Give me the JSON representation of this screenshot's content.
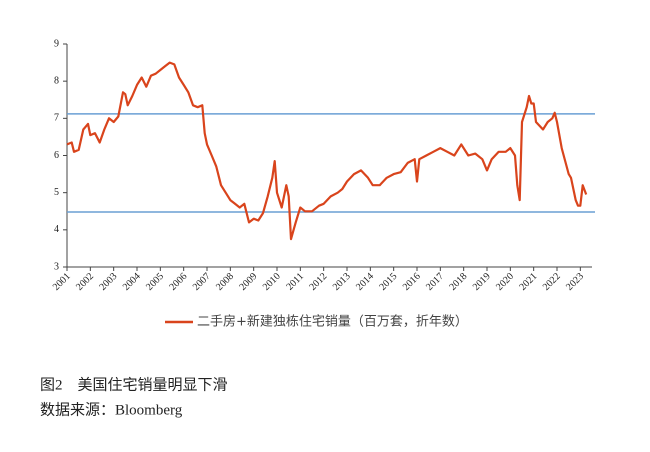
{
  "chart_data": {
    "type": "line",
    "x": [
      2001.0,
      2001.2,
      2001.3,
      2001.5,
      2001.7,
      2001.9,
      2002.0,
      2002.2,
      2002.4,
      2002.6,
      2002.8,
      2003.0,
      2003.2,
      2003.4,
      2003.5,
      2003.6,
      2003.8,
      2004.0,
      2004.2,
      2004.4,
      2004.6,
      2004.8,
      2005.0,
      2005.2,
      2005.4,
      2005.6,
      2005.8,
      2006.0,
      2006.2,
      2006.4,
      2006.6,
      2006.8,
      2006.9,
      2007.0,
      2007.2,
      2007.4,
      2007.6,
      2007.8,
      2008.0,
      2008.2,
      2008.4,
      2008.6,
      2008.8,
      2009.0,
      2009.2,
      2009.4,
      2009.6,
      2009.8,
      2009.9,
      2010.0,
      2010.2,
      2010.4,
      2010.5,
      2010.6,
      2010.8,
      2011.0,
      2011.2,
      2011.5,
      2011.8,
      2012.0,
      2012.3,
      2012.6,
      2012.8,
      2013.0,
      2013.3,
      2013.6,
      2013.9,
      2014.1,
      2014.4,
      2014.7,
      2015.0,
      2015.3,
      2015.6,
      2015.9,
      2016.0,
      2016.1,
      2016.4,
      2016.7,
      2017.0,
      2017.3,
      2017.6,
      2017.9,
      2018.2,
      2018.5,
      2018.8,
      2019.0,
      2019.2,
      2019.5,
      2019.8,
      2020.0,
      2020.2,
      2020.3,
      2020.4,
      2020.5,
      2020.7,
      2020.8,
      2020.9,
      2021.0,
      2021.1,
      2021.4,
      2021.6,
      2021.8,
      2021.9,
      2022.0,
      2022.2,
      2022.5,
      2022.6,
      2022.8,
      2022.9,
      2023.0,
      2023.1,
      2023.25
    ],
    "series": [
      {
        "name": "二手房+新建独栋住宅销量（百万套，折年数）",
        "color": "#d9441c",
        "values": [
          6.3,
          6.35,
          6.1,
          6.15,
          6.7,
          6.85,
          6.55,
          6.6,
          6.35,
          6.7,
          7.0,
          6.9,
          7.05,
          7.7,
          7.65,
          7.35,
          7.6,
          7.9,
          8.1,
          7.85,
          8.15,
          8.2,
          8.3,
          8.4,
          8.5,
          8.45,
          8.1,
          7.9,
          7.7,
          7.35,
          7.3,
          7.35,
          6.6,
          6.3,
          6.0,
          5.7,
          5.2,
          5.0,
          4.8,
          4.7,
          4.6,
          4.7,
          4.2,
          4.3,
          4.25,
          4.45,
          4.9,
          5.4,
          5.85,
          5.0,
          4.6,
          5.2,
          4.9,
          3.75,
          4.2,
          4.6,
          4.5,
          4.5,
          4.65,
          4.7,
          4.9,
          5.0,
          5.1,
          5.3,
          5.5,
          5.6,
          5.4,
          5.2,
          5.2,
          5.4,
          5.5,
          5.55,
          5.8,
          5.9,
          5.3,
          5.9,
          6.0,
          6.1,
          6.2,
          6.1,
          6.0,
          6.3,
          6.0,
          6.05,
          5.9,
          5.6,
          5.9,
          6.1,
          6.1,
          6.2,
          6.0,
          5.2,
          4.8,
          6.9,
          7.3,
          7.6,
          7.4,
          7.4,
          6.9,
          6.7,
          6.9,
          7.0,
          7.15,
          6.9,
          6.2,
          5.5,
          5.4,
          4.8,
          4.65,
          4.65,
          5.2,
          4.95
        ]
      }
    ],
    "hlines": [
      {
        "value": 7.12,
        "color": "#6a9fd4"
      },
      {
        "value": 4.48,
        "color": "#6a9fd4"
      }
    ],
    "xlim": [
      2001,
      2023.5
    ],
    "xticks": [
      2001,
      2002,
      2003,
      2004,
      2005,
      2006,
      2007,
      2008,
      2009,
      2010,
      2011,
      2012,
      2013,
      2014,
      2015,
      2016,
      2017,
      2018,
      2019,
      2020,
      2021,
      2022,
      2023
    ],
    "ylim": [
      3,
      9
    ],
    "yticks": [
      3,
      4,
      5,
      6,
      7,
      8,
      9
    ]
  },
  "caption": "图2　美国住宅销量明显下滑",
  "source": "数据来源：Bloomberg"
}
